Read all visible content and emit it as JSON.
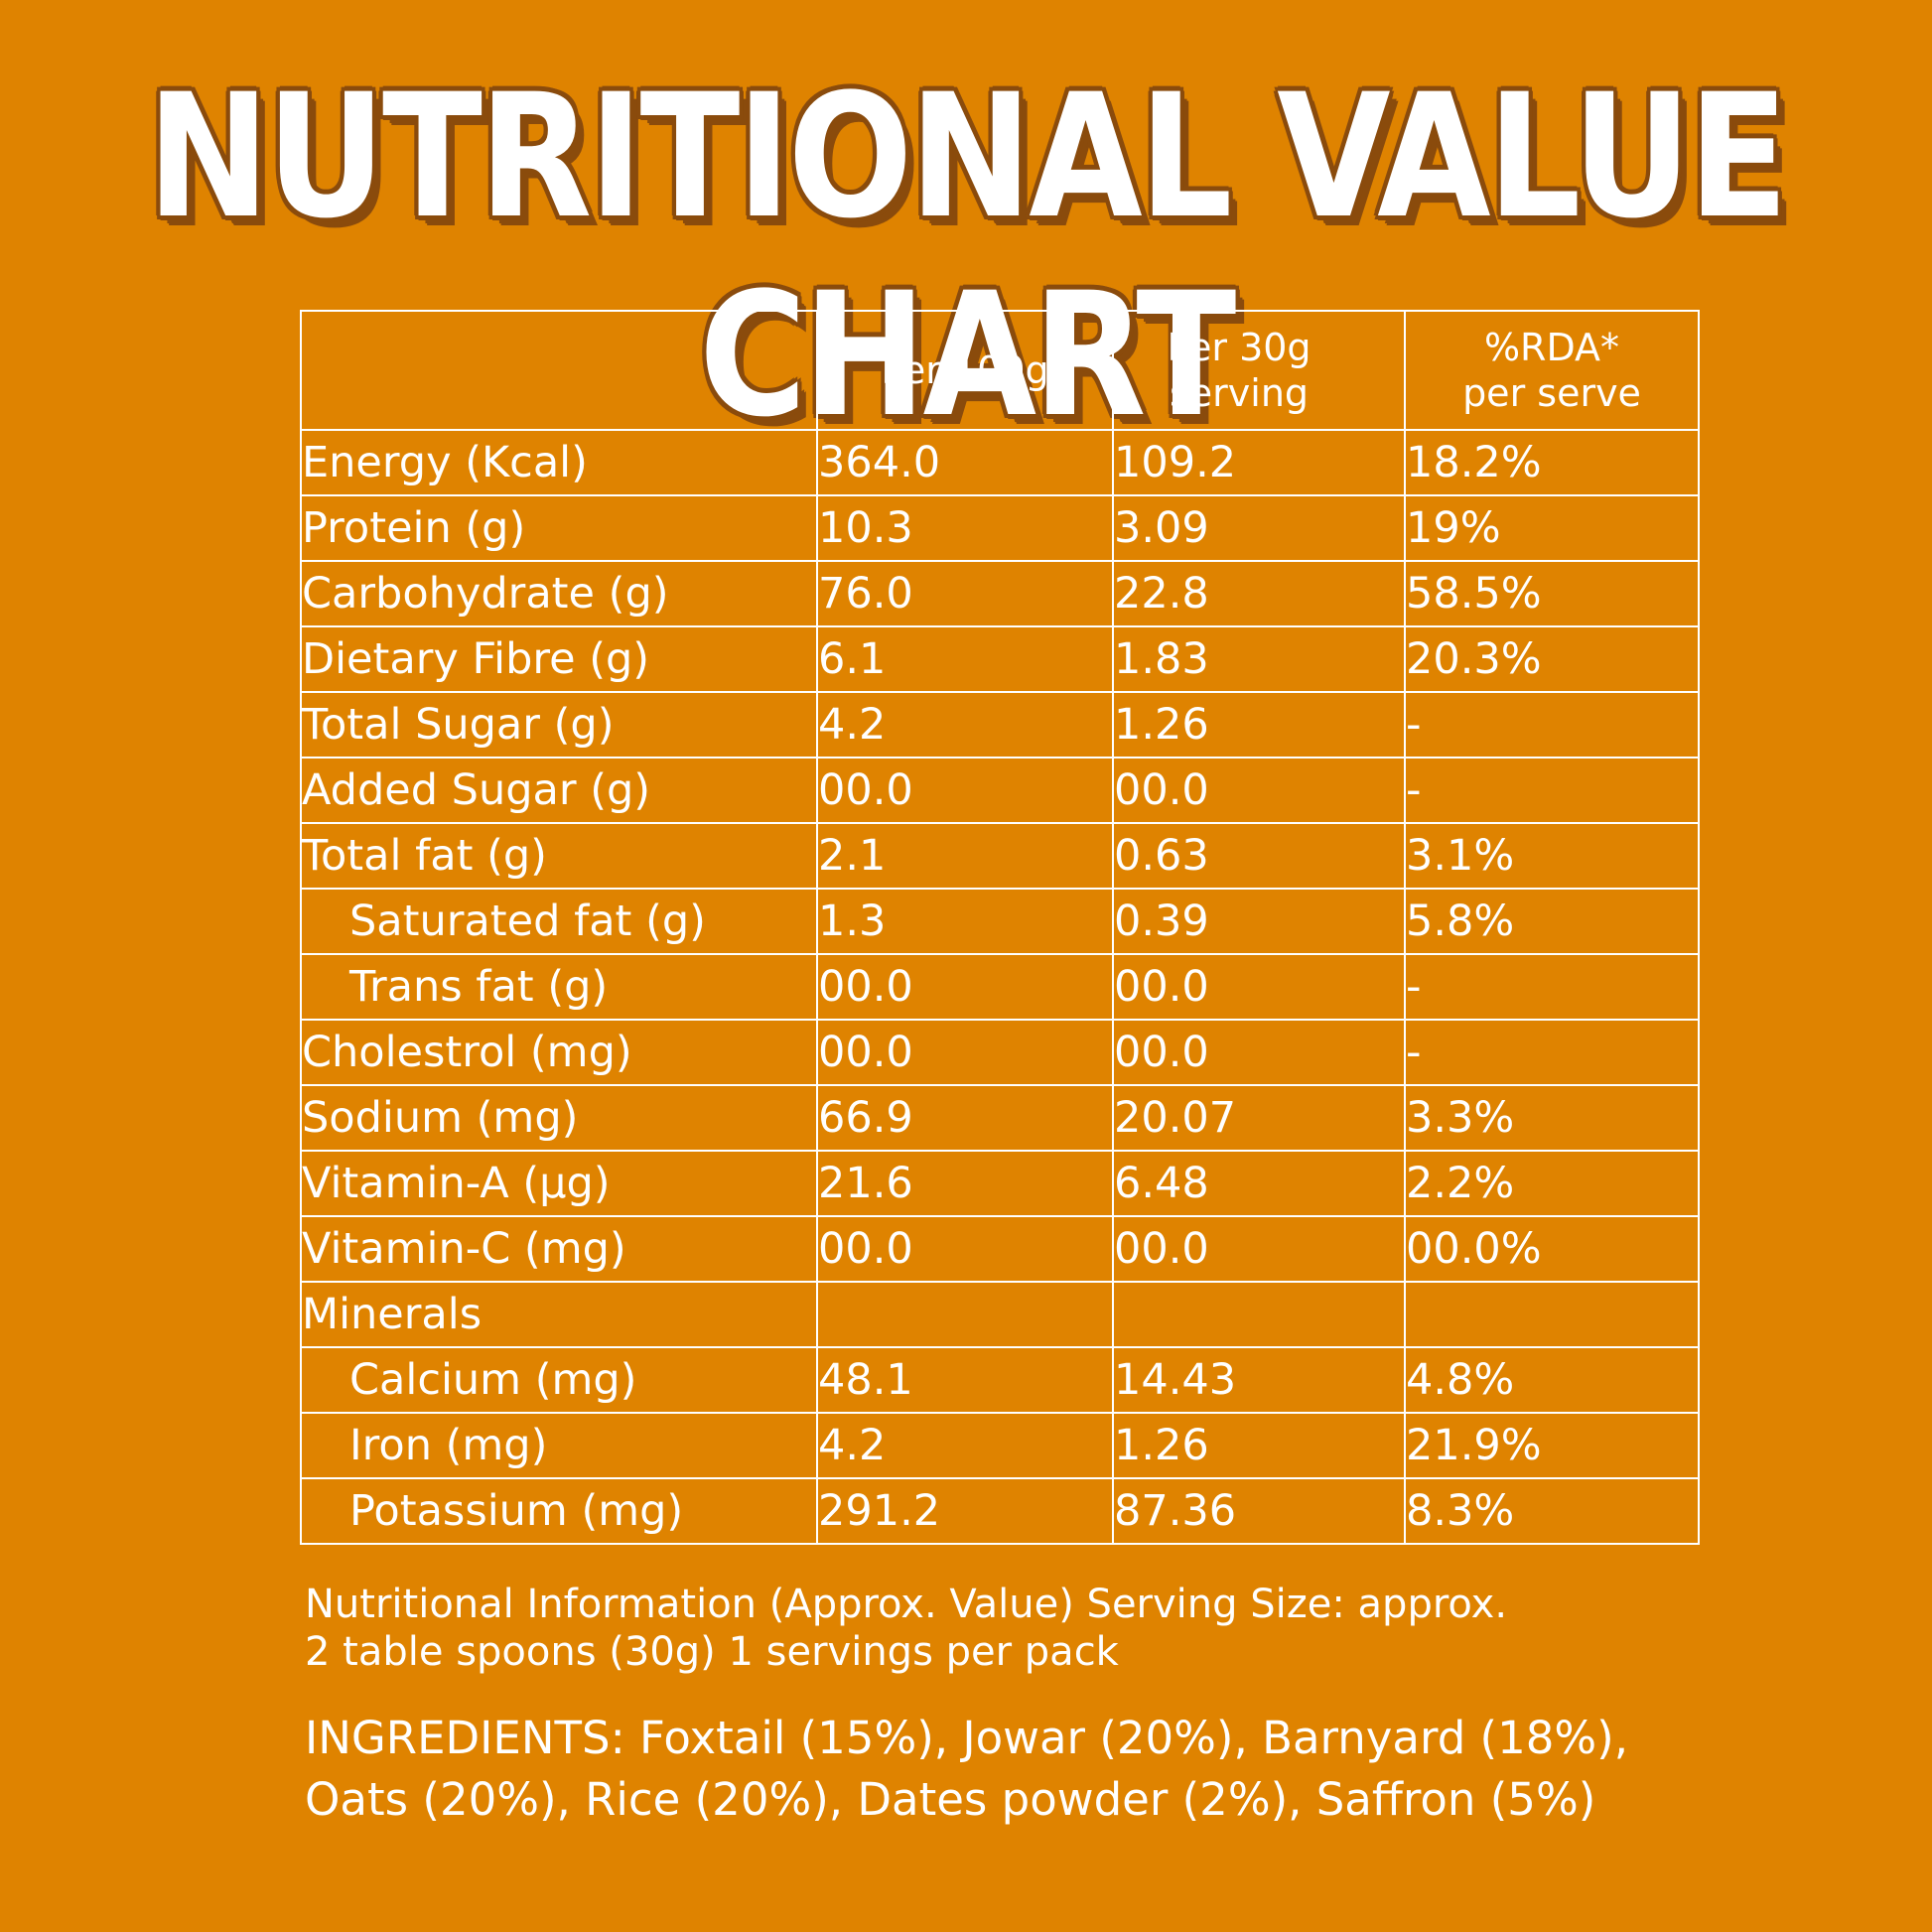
{
  "title": "NUTRITIONAL VALUE CHART",
  "table": {
    "headers": [
      "",
      "Per 100g",
      "Per 30g serving",
      "%RDA* per serve"
    ],
    "rows": [
      {
        "name": "Energy (Kcal)",
        "per100": "364.0",
        "per30": "109.2",
        "rda": "18.2%"
      },
      {
        "name": "Protein (g)",
        "per100": "10.3",
        "per30": "3.09",
        "rda": "19%"
      },
      {
        "name": "Carbohydrate (g)",
        "per100": "76.0",
        "per30": "22.8",
        "rda": "58.5%"
      },
      {
        "name": "Dietary Fibre (g)",
        "per100": "6.1",
        "per30": "1.83",
        "rda": "20.3%"
      },
      {
        "name": "Total Sugar (g)",
        "per100": "4.2",
        "per30": "1.26",
        "rda": "-"
      },
      {
        "name": "Added Sugar (g)",
        "per100": "00.0",
        "per30": "00.0",
        "rda": "-"
      },
      {
        "name": "Total fat (g)",
        "per100": "2.1",
        "per30": "0.63",
        "rda": "3.1%"
      },
      {
        "name": "Saturated fat (g)",
        "per100": "1.3",
        "per30": "0.39",
        "rda": "5.8%"
      },
      {
        "name": "Trans fat (g)",
        "per100": "00.0",
        "per30": "00.0",
        "rda": "-"
      },
      {
        "name": "Cholestrol (mg)",
        "per100": "00.0",
        "per30": "00.0",
        "rda": "-"
      },
      {
        "name": "Sodium (mg)",
        "per100": "66.9",
        "per30": "20.07",
        "rda": "3.3%"
      },
      {
        "name": "Vitamin-A (µg)",
        "per100": "21.6",
        "per30": "6.48",
        "rda": "2.2%"
      },
      {
        "name": "Vitamin-C (mg)",
        "per100": "00.0",
        "per30": "00.0",
        "rda": "00.0%"
      },
      {
        "name": "Minerals",
        "per100": "",
        "per30": "",
        "rda": ""
      },
      {
        "name": "Calcium (mg)",
        "per100": "48.1",
        "per30": "14.43",
        "rda": "4.8%"
      },
      {
        "name": "Iron (mg)",
        "per100": "4.2",
        "per30": "1.26",
        "rda": "21.9%"
      },
      {
        "name": "Potassium (mg)",
        "per100": "291.2",
        "per30": "87.36",
        "rda": "8.3%"
      }
    ]
  },
  "note": {
    "line1": "Nutritional Information (Approx. Value) Serving Size: approx.",
    "line2": "2 table spoons (30g) 1 servings per pack"
  },
  "ingredients": "INGREDIENTS: Foxtail (15%), Jowar (20%), Barnyard (18%),  Oats (20%), Rice (20%), Dates powder (2%), Saffron (5%)",
  "colors": {
    "background": "#DF8300",
    "text": "#FFFFFF",
    "title_outline": "#8A4B0C"
  }
}
